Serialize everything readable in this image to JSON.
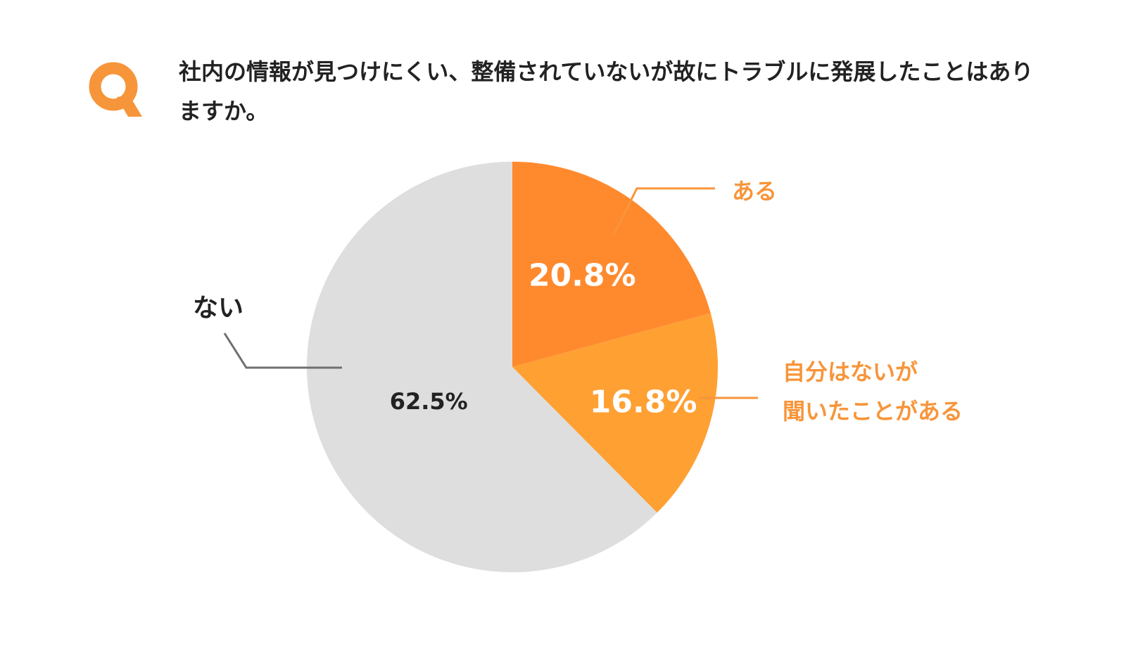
{
  "question": {
    "mark": "Q",
    "text": "社内の情報が見つけにくい、整備されていないが故にトラブルに発展したことはありますか。"
  },
  "colors": {
    "accent": "#f7953a",
    "text": "#222222"
  },
  "chart_data": {
    "type": "pie",
    "start_angle_deg": 0,
    "direction": "clockwise",
    "slices": [
      {
        "label": "ある",
        "label_lines": [
          "ある"
        ],
        "value": 20.8,
        "display": "20.8%",
        "color": "#ff8a2e",
        "value_color": "#ffffff",
        "label_color": "#f7953a",
        "leader_color": "#f7953a"
      },
      {
        "label": "自分はないが聞いたことがある",
        "label_lines": [
          "自分はないが",
          "聞いたことがある"
        ],
        "value": 16.8,
        "display": "16.8%",
        "color": "#ffa033",
        "value_color": "#ffffff",
        "label_color": "#f7953a",
        "leader_color": "#f7953a"
      },
      {
        "label": "ない",
        "label_lines": [
          "ない"
        ],
        "value": 62.5,
        "display": "62.5%",
        "color": "#dedede",
        "value_color": "#222222",
        "label_color": "#222222",
        "leader_color": "#707070"
      }
    ]
  }
}
